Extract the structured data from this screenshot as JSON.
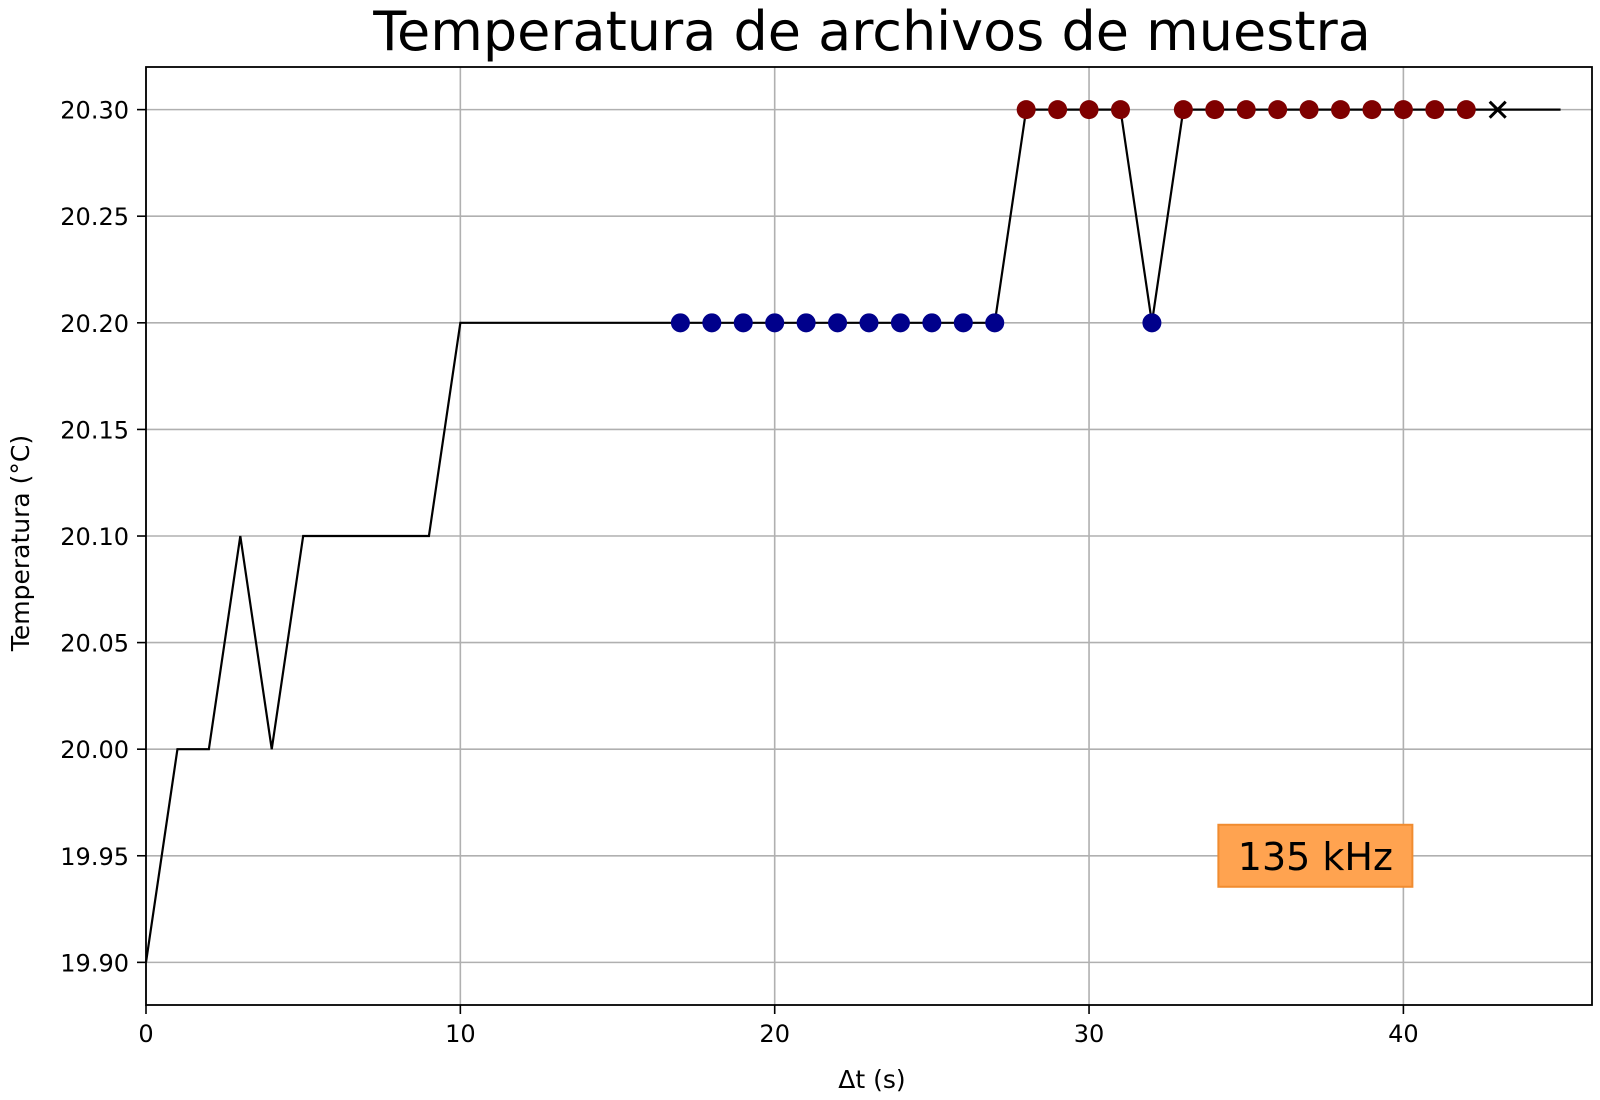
{
  "chart_data": {
    "type": "line",
    "title": "Temperatura de archivos de muestra",
    "xlabel": "Δt (s)",
    "ylabel": "Temperatura (°C)",
    "xlim": [
      0,
      46
    ],
    "ylim": [
      19.88,
      20.32
    ],
    "grid": true,
    "xticks": [
      0,
      10,
      20,
      30,
      40
    ],
    "xtick_labels": [
      "0",
      "10",
      "20",
      "30",
      "40"
    ],
    "yticks": [
      19.9,
      19.95,
      20.0,
      20.05,
      20.1,
      20.15,
      20.2,
      20.25,
      20.3
    ],
    "ytick_labels": [
      "19.90",
      "19.95",
      "20.00",
      "20.05",
      "20.10",
      "20.15",
      "20.20",
      "20.25",
      "20.30"
    ],
    "series": [
      {
        "kind": "line",
        "color": "#000000",
        "x": [
          0,
          1,
          2,
          3,
          4,
          5,
          6,
          7,
          8,
          9,
          10,
          11,
          12,
          13,
          14,
          15,
          16,
          17,
          18,
          19,
          20,
          21,
          22,
          23,
          24,
          25,
          26,
          27,
          28,
          29,
          30,
          31,
          32,
          33,
          34,
          35,
          36,
          37,
          38,
          39,
          40,
          41,
          42,
          43,
          44,
          45
        ],
        "y": [
          19.9,
          20.0,
          20.0,
          20.1,
          20.0,
          20.1,
          20.1,
          20.1,
          20.1,
          20.1,
          20.2,
          20.2,
          20.2,
          20.2,
          20.2,
          20.2,
          20.2,
          20.2,
          20.2,
          20.2,
          20.2,
          20.2,
          20.2,
          20.2,
          20.2,
          20.2,
          20.2,
          20.2,
          20.3,
          20.3,
          20.3,
          20.3,
          20.2,
          20.3,
          20.3,
          20.3,
          20.3,
          20.3,
          20.3,
          20.3,
          20.3,
          20.3,
          20.3,
          20.3,
          20.3,
          20.3
        ]
      },
      {
        "kind": "scatter",
        "color": "#00008b",
        "x": [
          17,
          18,
          19,
          20,
          21,
          22,
          23,
          24,
          25,
          26,
          27,
          32
        ],
        "y": [
          20.2,
          20.2,
          20.2,
          20.2,
          20.2,
          20.2,
          20.2,
          20.2,
          20.2,
          20.2,
          20.2,
          20.2
        ]
      },
      {
        "kind": "scatter",
        "color": "#7f0000",
        "x": [
          28,
          29,
          30,
          31,
          33,
          34,
          35,
          36,
          37,
          38,
          39,
          40,
          41,
          42
        ],
        "y": [
          20.3,
          20.3,
          20.3,
          20.3,
          20.3,
          20.3,
          20.3,
          20.3,
          20.3,
          20.3,
          20.3,
          20.3,
          20.3,
          20.3
        ]
      },
      {
        "kind": "marker-x",
        "color": "#000000",
        "x": [
          43
        ],
        "y": [
          20.3
        ]
      }
    ],
    "annotation": {
      "text": "135 kHz",
      "x": 37.2,
      "y": 19.95,
      "background": "#ffa350",
      "border": "#f08c30"
    }
  }
}
